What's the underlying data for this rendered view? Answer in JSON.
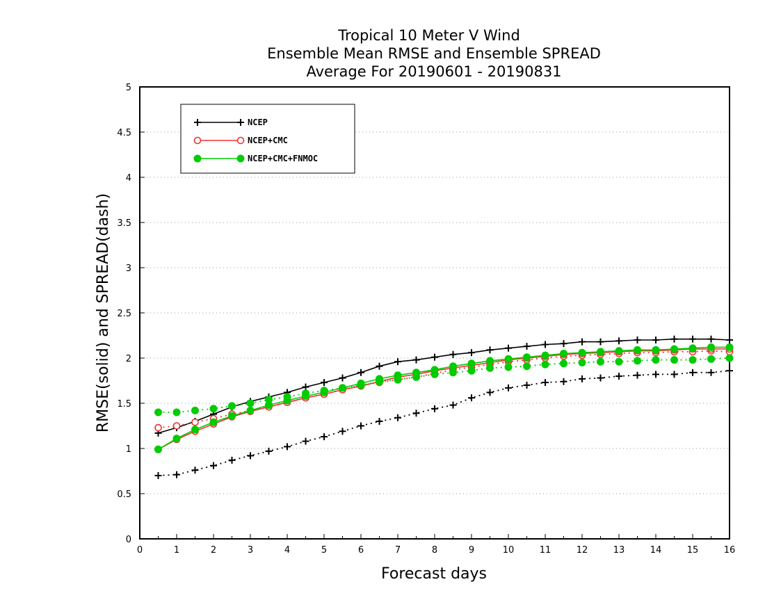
{
  "chart_data": {
    "type": "line",
    "title_lines": [
      "Tropical 10 Meter V Wind",
      "Ensemble Mean RMSE and Ensemble SPREAD",
      "Average For 20190601 - 20190831"
    ],
    "xlabel": "Forecast days",
    "ylabel": "RMSE(solid) and SPREAD(dash)",
    "xlim": [
      0,
      16
    ],
    "ylim": [
      0,
      5
    ],
    "x_ticks": [
      "0",
      "1",
      "2",
      "3",
      "4",
      "5",
      "6",
      "7",
      "8",
      "9",
      "10",
      "11",
      "12",
      "13",
      "14",
      "15",
      "16"
    ],
    "y_ticks": [
      "0",
      "0.5",
      "1",
      "1.5",
      "2",
      "2.5",
      "3",
      "3.5",
      "4",
      "4.5",
      "5"
    ],
    "grid": "horizontal dotted",
    "legend_position": "top-left",
    "x": [
      0.5,
      1,
      1.5,
      2,
      2.5,
      3,
      3.5,
      4,
      4.5,
      5,
      5.5,
      6,
      6.5,
      7,
      7.5,
      8,
      8.5,
      9,
      9.5,
      10,
      10.5,
      11,
      11.5,
      12,
      12.5,
      13,
      13.5,
      14,
      14.5,
      15,
      15.5,
      16
    ],
    "series": [
      {
        "name": "NCEP",
        "color": "#000000",
        "marker": "plus",
        "rmse": [
          1.17,
          1.23,
          1.3,
          1.38,
          1.46,
          1.52,
          1.57,
          1.62,
          1.68,
          1.73,
          1.78,
          1.84,
          1.91,
          1.96,
          1.98,
          2.01,
          2.04,
          2.06,
          2.09,
          2.11,
          2.13,
          2.15,
          2.16,
          2.18,
          2.18,
          2.19,
          2.2,
          2.2,
          2.21,
          2.21,
          2.21,
          2.2
        ],
        "spread": [
          0.7,
          0.71,
          0.76,
          0.81,
          0.87,
          0.92,
          0.97,
          1.02,
          1.08,
          1.13,
          1.19,
          1.25,
          1.3,
          1.34,
          1.39,
          1.44,
          1.48,
          1.56,
          1.62,
          1.67,
          1.7,
          1.73,
          1.74,
          1.77,
          1.78,
          1.8,
          1.81,
          1.82,
          1.82,
          1.84,
          1.84,
          1.86
        ]
      },
      {
        "name": "NCEP+CMC",
        "color": "#ee3333",
        "marker": "open-circle",
        "rmse": [
          0.99,
          1.1,
          1.19,
          1.27,
          1.35,
          1.41,
          1.46,
          1.51,
          1.56,
          1.6,
          1.65,
          1.69,
          1.74,
          1.79,
          1.82,
          1.86,
          1.89,
          1.92,
          1.95,
          1.98,
          2.0,
          2.02,
          2.04,
          2.05,
          2.06,
          2.07,
          2.08,
          2.08,
          2.09,
          2.1,
          2.1,
          2.1
        ],
        "spread": [
          1.23,
          1.25,
          1.29,
          1.33,
          1.38,
          1.42,
          1.46,
          1.51,
          1.56,
          1.6,
          1.65,
          1.7,
          1.73,
          1.76,
          1.79,
          1.83,
          1.87,
          1.9,
          1.93,
          1.96,
          1.98,
          2.0,
          2.02,
          2.03,
          2.04,
          2.05,
          2.06,
          2.06,
          2.07,
          2.07,
          2.08,
          2.07
        ]
      },
      {
        "name": "NCEP+CMC+FNMOC",
        "color": "#00cc00",
        "marker": "filled-circle",
        "rmse": [
          0.99,
          1.11,
          1.21,
          1.29,
          1.36,
          1.42,
          1.48,
          1.53,
          1.58,
          1.62,
          1.67,
          1.72,
          1.77,
          1.81,
          1.84,
          1.87,
          1.91,
          1.94,
          1.97,
          1.99,
          2.01,
          2.03,
          2.05,
          2.06,
          2.07,
          2.08,
          2.09,
          2.09,
          2.1,
          2.11,
          2.12,
          2.12
        ],
        "spread": [
          1.4,
          1.4,
          1.42,
          1.44,
          1.47,
          1.5,
          1.54,
          1.57,
          1.61,
          1.64,
          1.67,
          1.7,
          1.74,
          1.76,
          1.79,
          1.82,
          1.84,
          1.86,
          1.89,
          1.9,
          1.91,
          1.93,
          1.94,
          1.95,
          1.96,
          1.96,
          1.97,
          1.98,
          1.98,
          1.98,
          1.99,
          2.0
        ]
      }
    ]
  }
}
